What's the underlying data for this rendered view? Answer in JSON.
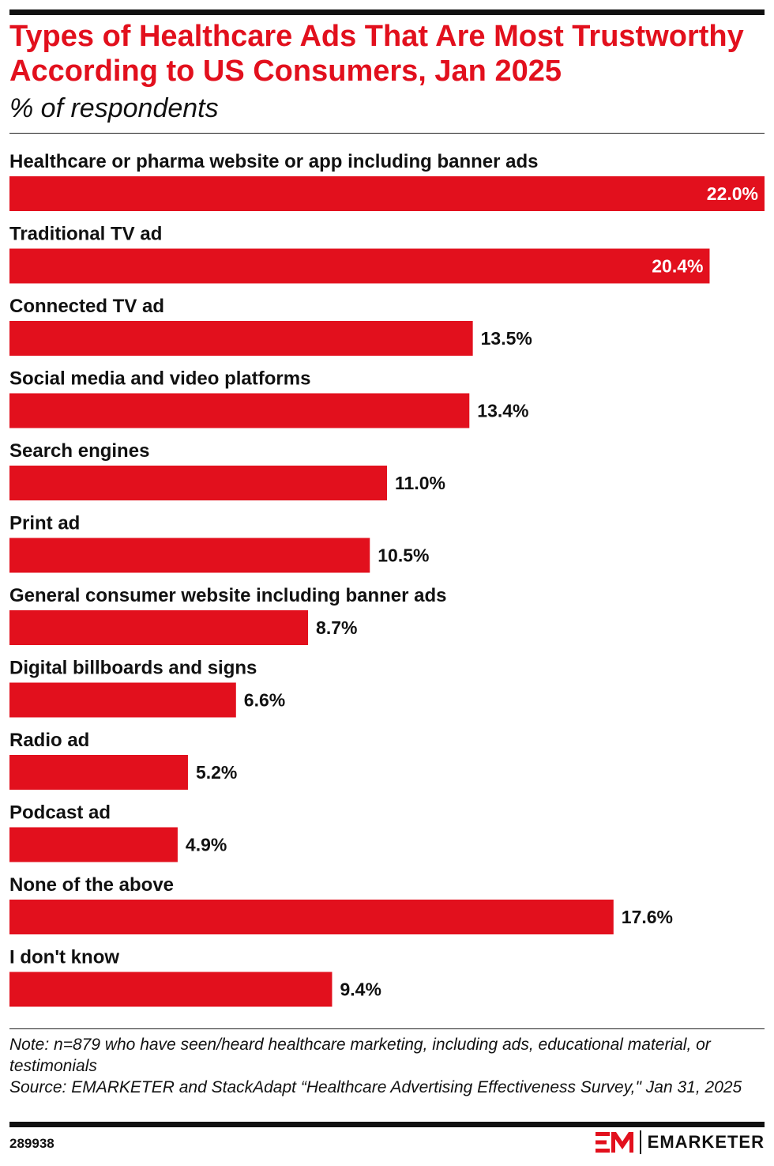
{
  "header": {
    "title": "Types of Healthcare Ads That Are Most Trustworthy According to US Consumers, Jan 2025",
    "subtitle": "% of respondents"
  },
  "chart_data": {
    "type": "bar",
    "orientation": "horizontal",
    "title": "Types of Healthcare Ads That Are Most Trustworthy According to US Consumers, Jan 2025",
    "subtitle": "% of respondents",
    "xlabel": "",
    "ylabel": "",
    "grid": false,
    "xlim": [
      0,
      22.0
    ],
    "categories": [
      "Healthcare or pharma website or app including banner ads",
      "Traditional TV ad",
      "Connected TV ad",
      "Social media and video platforms",
      "Search engines",
      "Print ad",
      "General consumer website including banner ads",
      "Digital billboards and signs",
      "Radio ad",
      "Podcast ad",
      "None of the above",
      "I don't know"
    ],
    "values": [
      22.0,
      20.4,
      13.5,
      13.4,
      11.0,
      10.5,
      8.7,
      6.6,
      5.2,
      4.9,
      17.6,
      9.4
    ],
    "value_labels": [
      "22.0%",
      "20.4%",
      "13.5%",
      "13.4%",
      "11.0%",
      "10.5%",
      "8.7%",
      "6.6%",
      "5.2%",
      "4.9%",
      "17.6%",
      "9.4%"
    ],
    "bar_color": "#e2101d"
  },
  "footer": {
    "note": "Note: n=879 who have seen/heard healthcare marketing, including ads, educational material, or testimonials",
    "source": "Source: EMARKETER and StackAdapt “Healthcare Advertising Effectiveness Survey,\" Jan 31, 2025",
    "chart_id": "289938",
    "brand": "EMARKETER",
    "brand_logo_text": "EM",
    "brand_color": "#e2101d"
  }
}
